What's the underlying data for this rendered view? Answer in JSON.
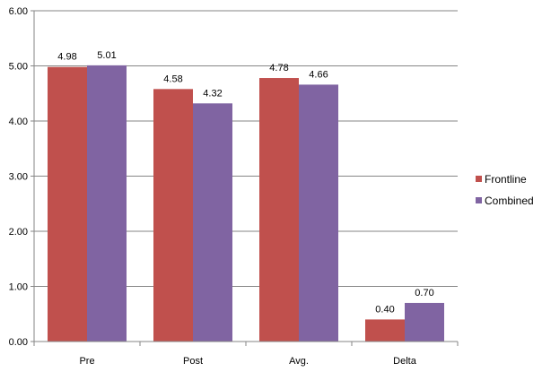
{
  "chart_data": {
    "type": "bar",
    "categories": [
      "Pre",
      "Post",
      "Avg.",
      "Delta"
    ],
    "series": [
      {
        "name": "Frontline",
        "values": [
          4.98,
          4.58,
          4.78,
          0.4
        ],
        "labels": [
          "4.98",
          "4.58",
          "4.78",
          "0.40"
        ],
        "color": "#C0504D"
      },
      {
        "name": "Combined",
        "values": [
          5.01,
          4.32,
          4.66,
          0.7
        ],
        "labels": [
          "5.01",
          "4.32",
          "4.66",
          "0.70"
        ],
        "color": "#8064A2"
      }
    ],
    "y_ticks": [
      "0.00",
      "1.00",
      "2.00",
      "3.00",
      "4.00",
      "5.00",
      "6.00"
    ],
    "ylim": [
      0,
      6
    ],
    "grid": true,
    "gridline_color": "#868686",
    "legend_position": "right"
  }
}
